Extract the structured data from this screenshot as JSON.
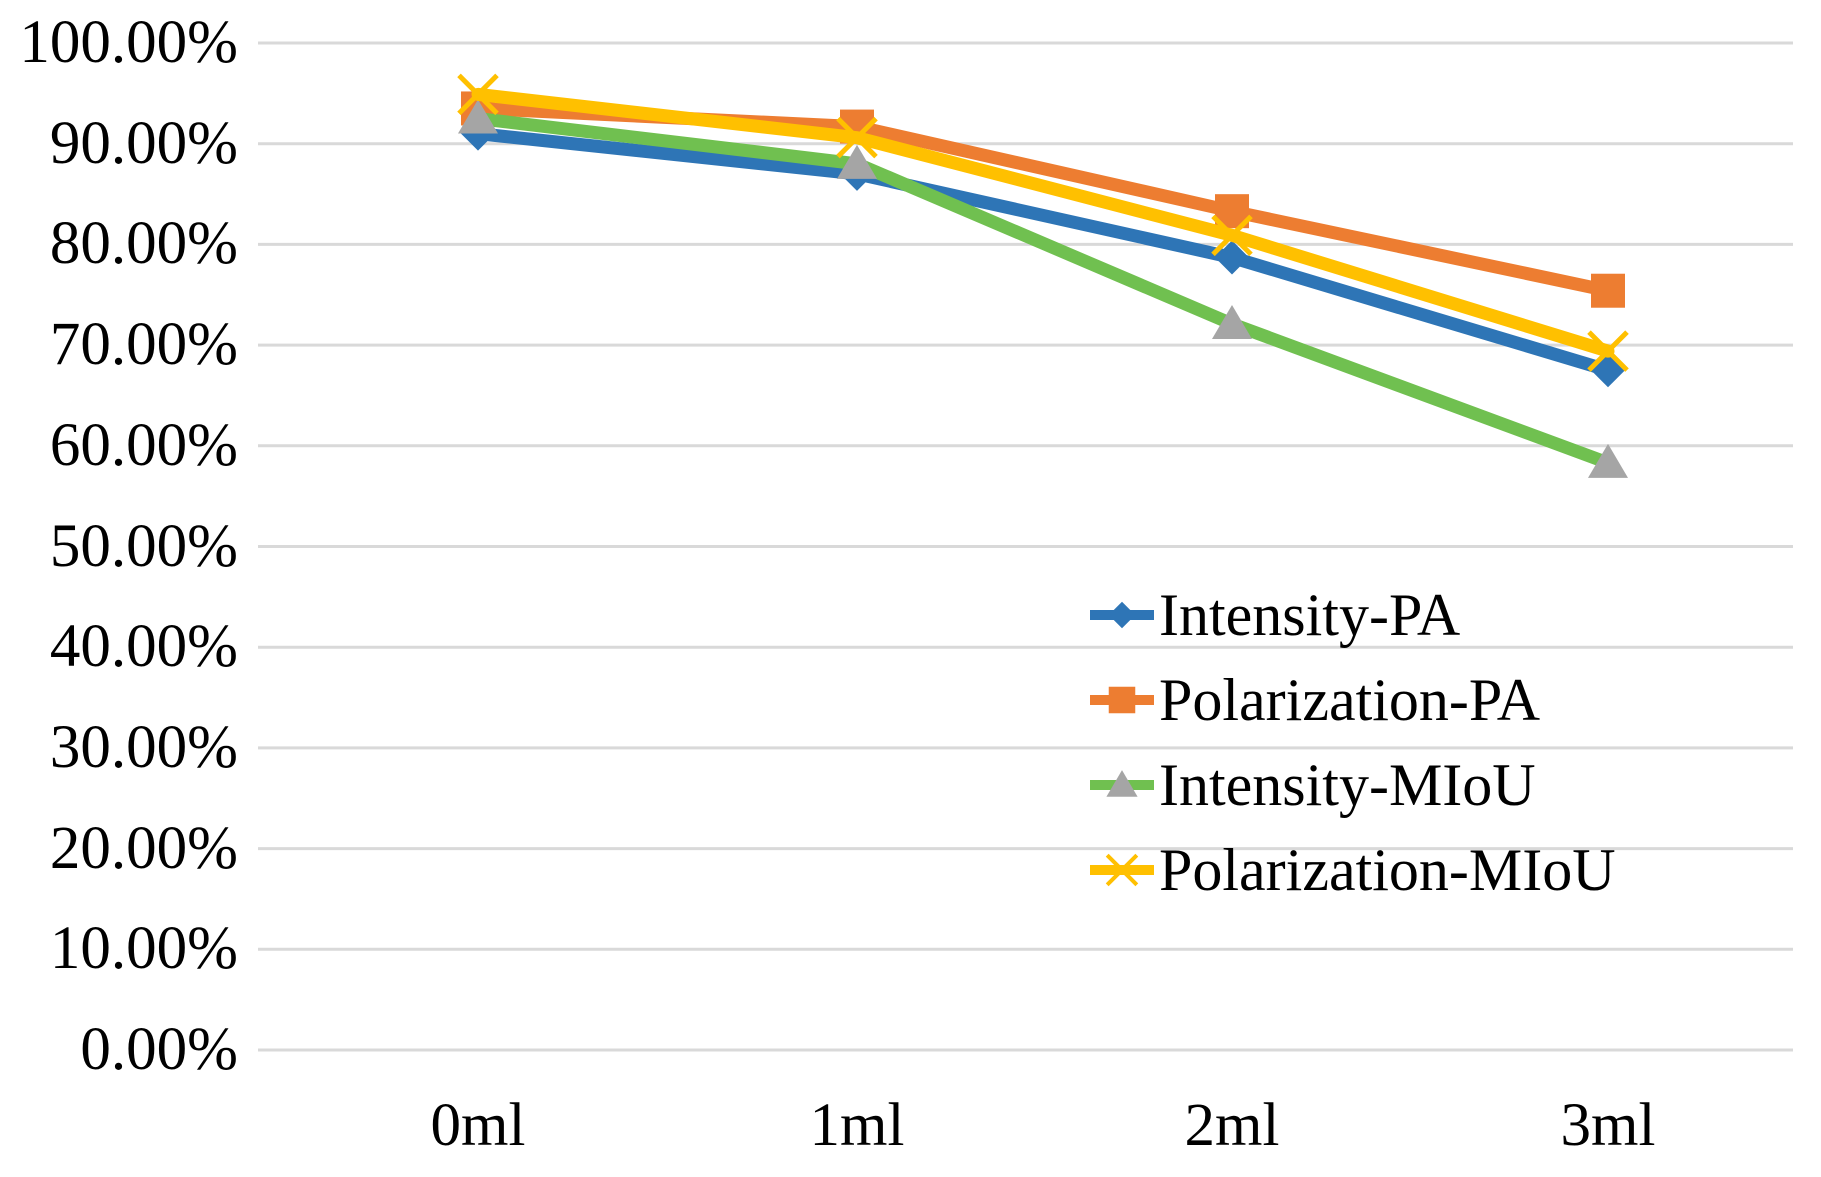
{
  "chart_data": {
    "type": "line",
    "title": "",
    "categories": [
      "0ml",
      "1ml",
      "2ml",
      "3ml"
    ],
    "series": [
      {
        "name": "Intensity-PA",
        "color": "#2E75B6",
        "marker": "diamond",
        "marker_color": "#2E75B6",
        "values": [
          91.0,
          87.0,
          78.7,
          67.5
        ]
      },
      {
        "name": "Polarization-PA",
        "color": "#ED7D31",
        "marker": "square",
        "marker_color": "#ED7D31",
        "values": [
          93.5,
          91.7,
          83.3,
          75.4
        ]
      },
      {
        "name": "Intensity-MIoU",
        "color": "#70C050",
        "marker": "triangle",
        "marker_color": "#A5A5A5",
        "values": [
          92.5,
          88.0,
          72.1,
          58.3
        ]
      },
      {
        "name": "Polarization-MIoU",
        "color": "#FFC000",
        "marker": "x",
        "marker_color": "#FFC000",
        "values": [
          94.9,
          90.6,
          80.9,
          69.4
        ]
      }
    ],
    "y_axis": {
      "ticks": [
        "100.00%",
        "90.00%",
        "80.00%",
        "70.00%",
        "60.00%",
        "50.00%",
        "40.00%",
        "30.00%",
        "20.00%",
        "10.00%",
        "0.00%"
      ],
      "min": 0,
      "max": 100,
      "step": 10
    },
    "x_axis": {
      "labels": [
        "0ml",
        "1ml",
        "2ml",
        "3ml"
      ]
    },
    "grid": true,
    "gridline_color": "#D9D9D9",
    "legend_position": "middle-right",
    "text_color": "#000000",
    "background_color": "#FFFFFF"
  }
}
